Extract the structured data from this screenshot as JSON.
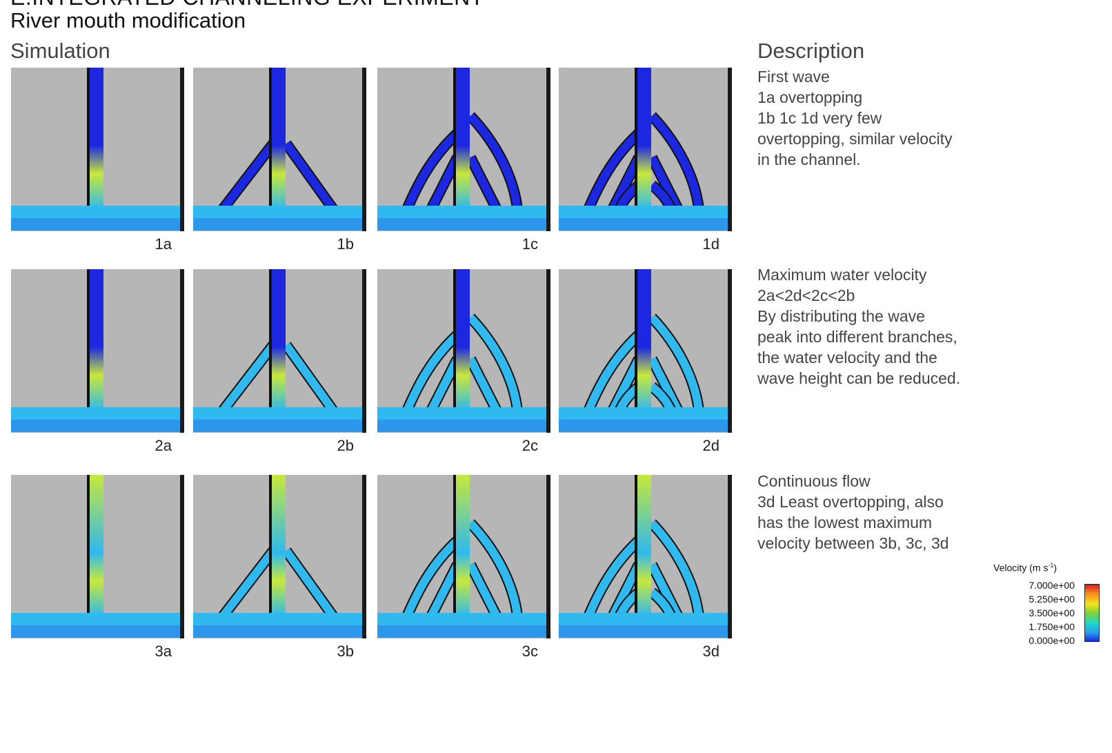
{
  "header": {
    "cut_title": "E.INTEGRATED CHANNELING EXPERIMENT",
    "subtitle": "River mouth modification",
    "simulation_heading": "Simulation",
    "description_heading": "Description"
  },
  "panels": [
    {
      "label": "1a"
    },
    {
      "label": "1b"
    },
    {
      "label": "1c"
    },
    {
      "label": "1d"
    },
    {
      "label": "2a"
    },
    {
      "label": "2b"
    },
    {
      "label": "2c"
    },
    {
      "label": "2d"
    },
    {
      "label": "3a"
    },
    {
      "label": "3b"
    },
    {
      "label": "3c"
    },
    {
      "label": "3d"
    }
  ],
  "descriptions": [
    {
      "lines": [
        "First wave",
        "1a overtopping",
        "1b 1c 1d very few",
        "overtopping, similar velocity",
        "in the channel."
      ]
    },
    {
      "lines": [
        "Maximum water velocity",
        "2a<2d<2c<2b",
        "By distributing the wave",
        "peak into different branches,",
        "the water velocity and the",
        "wave height can be reduced."
      ]
    },
    {
      "lines": [
        "Continuous flow",
        "3d Least overtopping, also",
        "has the lowest maximum",
        "velocity between 3b, 3c, 3d"
      ]
    }
  ],
  "legend": {
    "title": "Velocity (m s",
    "title_sup": "-1",
    "title_end": ")",
    "ticks": [
      "7.000e+00",
      "5.250e+00",
      "3.500e+00",
      "1.750e+00",
      "0.000e+00"
    ],
    "colors": [
      "#d7191c",
      "#f2e51d",
      "#7fd13b",
      "#27a3ee",
      "#1e2bd8"
    ]
  },
  "colors": {
    "background_gray": "#b6b6b6",
    "channel_blue": "#1c27e0",
    "water_cyan": "#2fb9ee",
    "highlight_yellow": "#c8e83a"
  }
}
